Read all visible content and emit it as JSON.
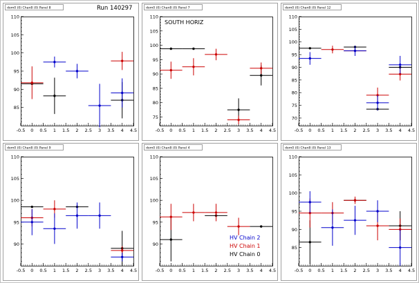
{
  "chart_data": [
    {
      "type": "scatter",
      "panel_title": "dom0 (0) Chan8 (0) Panel 8",
      "header_text": "Run 140297",
      "ylim": [
        80,
        110
      ],
      "yticks": [
        85,
        90,
        95,
        100,
        105,
        110
      ],
      "xlim": [
        -0.5,
        4.5
      ],
      "xticks": [
        "-0.5",
        "0",
        "0.5",
        "1",
        "1.5",
        "2",
        "2.5",
        "3",
        "3.5",
        "4",
        "4.5"
      ],
      "series": [
        {
          "color": "#000000",
          "points": [
            {
              "x": 0,
              "y": 91.5,
              "yerr": 0
            },
            {
              "x": 1,
              "y": 88.2,
              "yerr": 5
            },
            {
              "x": 4,
              "y": 87,
              "yerr": 5
            }
          ]
        },
        {
          "color": "#cc0000",
          "points": [
            {
              "x": 0,
              "y": 91.8,
              "yerr": 4.5
            },
            {
              "x": 4,
              "y": 97.8,
              "yerr": 2.5
            }
          ]
        },
        {
          "color": "#0000cc",
          "points": [
            {
              "x": 1,
              "y": 97.5,
              "yerr": 1.5
            },
            {
              "x": 2,
              "y": 95,
              "yerr": 2
            },
            {
              "x": 3,
              "y": 85.5,
              "yerr": 6
            },
            {
              "x": 4,
              "y": 89,
              "yerr": 4
            }
          ]
        }
      ]
    },
    {
      "type": "scatter",
      "panel_title": "dom0 (0) Chan8 (0) Panel 7",
      "annotation": "SOUTH HORIZ",
      "ylim": [
        72,
        110
      ],
      "yticks": [
        75,
        80,
        85,
        90,
        95,
        100,
        105,
        110
      ],
      "xlim": [
        -0.5,
        4.5
      ],
      "xticks": [
        "-0.5",
        "0",
        "0.5",
        "1",
        "1.5",
        "2",
        "2.5",
        "3",
        "3.5",
        "4",
        "4.5"
      ],
      "series": [
        {
          "color": "#000000",
          "points": [
            {
              "x": 0,
              "y": 98.8,
              "yerr": 0
            },
            {
              "x": 1,
              "y": 98.8,
              "yerr": 0
            },
            {
              "x": 3,
              "y": 77.5,
              "yerr": 4
            },
            {
              "x": 4,
              "y": 89.5,
              "yerr": 3.5
            }
          ]
        },
        {
          "color": "#cc0000",
          "points": [
            {
              "x": 0,
              "y": 91.3,
              "yerr": 3
            },
            {
              "x": 1,
              "y": 92.5,
              "yerr": 3
            },
            {
              "x": 2,
              "y": 96.8,
              "yerr": 2
            },
            {
              "x": 3,
              "y": 74,
              "yerr": 1.5
            },
            {
              "x": 4,
              "y": 92,
              "yerr": 2
            }
          ]
        }
      ]
    },
    {
      "type": "scatter",
      "panel_title": "dom0 (0) Chan8 (0) Panel 12",
      "ylim": [
        67,
        110
      ],
      "yticks": [
        70,
        75,
        80,
        85,
        90,
        95,
        100,
        105,
        110
      ],
      "xlim": [
        -0.5,
        4.5
      ],
      "xticks": [
        "-0.5",
        "0",
        "0.5",
        "1",
        "1.5",
        "2",
        "2.5",
        "3",
        "3.5",
        "4",
        "4.5"
      ],
      "series": [
        {
          "color": "#000000",
          "points": [
            {
              "x": 0,
              "y": 97.5,
              "yerr": 0
            },
            {
              "x": 2,
              "y": 98,
              "yerr": 0
            },
            {
              "x": 3,
              "y": 73.5,
              "yerr": 0
            },
            {
              "x": 4,
              "y": 90,
              "yerr": 0
            }
          ]
        },
        {
          "color": "#cc0000",
          "points": [
            {
              "x": 1,
              "y": 97,
              "yerr": 1.5
            },
            {
              "x": 2,
              "y": 96.5,
              "yerr": 1
            },
            {
              "x": 3,
              "y": 79,
              "yerr": 3
            },
            {
              "x": 4,
              "y": 87.3,
              "yerr": 2.5
            }
          ]
        },
        {
          "color": "#0000cc",
          "points": [
            {
              "x": 0,
              "y": 93.5,
              "yerr": 2.5
            },
            {
              "x": 2,
              "y": 96.5,
              "yerr": 2
            },
            {
              "x": 3,
              "y": 76,
              "yerr": 3
            },
            {
              "x": 4,
              "y": 91,
              "yerr": 3.5
            }
          ]
        }
      ]
    },
    {
      "type": "scatter",
      "panel_title": "dom0 (0) Chan8 (0) Panel 9",
      "ylim": [
        85,
        110
      ],
      "yticks": [
        90,
        95,
        100,
        105,
        110
      ],
      "xlim": [
        -0.5,
        4.5
      ],
      "xticks": [
        "-0.5",
        "0",
        "0.5",
        "1",
        "1.5",
        "2",
        "2.5",
        "3",
        "3.5",
        "4",
        "4.5"
      ],
      "series": [
        {
          "color": "#000000",
          "points": [
            {
              "x": 0,
              "y": 98.5,
              "yerr": 0
            },
            {
              "x": 2,
              "y": 98.5,
              "yerr": 0
            },
            {
              "x": 4,
              "y": 89,
              "yerr": 4
            }
          ]
        },
        {
          "color": "#cc0000",
          "points": [
            {
              "x": 0,
              "y": 96,
              "yerr": 2
            },
            {
              "x": 1,
              "y": 98,
              "yerr": 2
            },
            {
              "x": 4,
              "y": 88.5,
              "yerr": 1
            }
          ]
        },
        {
          "color": "#0000cc",
          "points": [
            {
              "x": 0,
              "y": 95,
              "yerr": 3
            },
            {
              "x": 1,
              "y": 93.5,
              "yerr": 3.5
            },
            {
              "x": 2,
              "y": 96.5,
              "yerr": 3
            },
            {
              "x": 3,
              "y": 96.5,
              "yerr": 3
            },
            {
              "x": 4,
              "y": 87,
              "yerr": 1
            }
          ]
        }
      ]
    },
    {
      "type": "scatter",
      "panel_title": "dom0 (0) Chan8 (0) Panel 4",
      "ylim": [
        85,
        110
      ],
      "yticks": [
        90,
        95,
        100,
        105,
        110
      ],
      "xlim": [
        -0.5,
        4.5
      ],
      "xticks": [
        "-0.5",
        "0",
        "0.5",
        "1",
        "1.5",
        "2",
        "2.5",
        "3",
        "3.5",
        "4",
        "4.5"
      ],
      "legend": [
        {
          "label": "HV Chain 2",
          "color": "#0000cc"
        },
        {
          "label": "HV Chain 1",
          "color": "#cc0000"
        },
        {
          "label": "HV Chain 0",
          "color": "#000000"
        }
      ],
      "series": [
        {
          "color": "#000000",
          "points": [
            {
              "x": 0,
              "y": 91,
              "yerr": 5
            },
            {
              "x": 2,
              "y": 96.5,
              "yerr": 0
            },
            {
              "x": 4,
              "y": 94,
              "yerr": 0
            }
          ]
        },
        {
          "color": "#cc0000",
          "points": [
            {
              "x": 0,
              "y": 96.2,
              "yerr": 3
            },
            {
              "x": 1,
              "y": 97.2,
              "yerr": 2
            },
            {
              "x": 2,
              "y": 97.2,
              "yerr": 2
            },
            {
              "x": 3,
              "y": 94,
              "yerr": 2
            }
          ]
        }
      ]
    },
    {
      "type": "scatter",
      "panel_title": "dom0 (0) Chan8 (0) Panel 13",
      "ylim": [
        80,
        110
      ],
      "yticks": [
        85,
        90,
        95,
        100,
        105,
        110
      ],
      "xlim": [
        -0.5,
        4.5
      ],
      "xticks": [
        "-0.5",
        "0",
        "0.5",
        "1",
        "1.5",
        "2",
        "2.5",
        "3",
        "3.5",
        "4",
        "4.5"
      ],
      "series": [
        {
          "color": "#000000",
          "points": [
            {
              "x": 0,
              "y": 86.5,
              "yerr": 6
            },
            {
              "x": 2,
              "y": 98,
              "yerr": 0
            },
            {
              "x": 4,
              "y": 91,
              "yerr": 4
            }
          ]
        },
        {
          "color": "#cc0000",
          "points": [
            {
              "x": 0,
              "y": 94.5,
              "yerr": 4
            },
            {
              "x": 1,
              "y": 94.5,
              "yerr": 3
            },
            {
              "x": 2,
              "y": 98,
              "yerr": 1
            },
            {
              "x": 3,
              "y": 91,
              "yerr": 4
            },
            {
              "x": 4,
              "y": 90,
              "yerr": 3
            }
          ]
        },
        {
          "color": "#0000cc",
          "points": [
            {
              "x": 0,
              "y": 97.5,
              "yerr": 3
            },
            {
              "x": 1,
              "y": 90.5,
              "yerr": 5
            },
            {
              "x": 2,
              "y": 92.5,
              "yerr": 4
            },
            {
              "x": 3,
              "y": 95,
              "yerr": 3
            },
            {
              "x": 4,
              "y": 85,
              "yerr": 5
            }
          ]
        }
      ]
    }
  ]
}
